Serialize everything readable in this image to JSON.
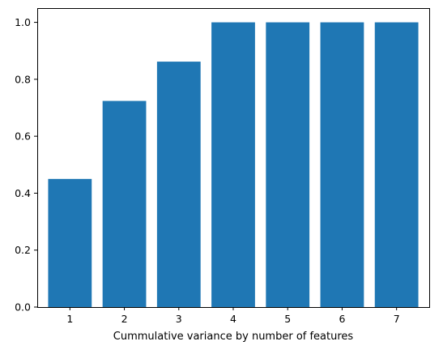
{
  "chart_data": {
    "type": "bar",
    "title": "",
    "xlabel": "Cummulative variance by number of features",
    "ylabel": "",
    "categories": [
      "1",
      "2",
      "3",
      "4",
      "5",
      "6",
      "7"
    ],
    "values": [
      0.45,
      0.724,
      0.862,
      1.0,
      1.0,
      1.0,
      1.0
    ],
    "ylim": [
      0,
      1.05
    ],
    "yticks": [
      "0.0",
      "0.2",
      "0.4",
      "0.6",
      "0.8",
      "1.0"
    ],
    "bar_color": "#1f77b4",
    "grid": false
  }
}
